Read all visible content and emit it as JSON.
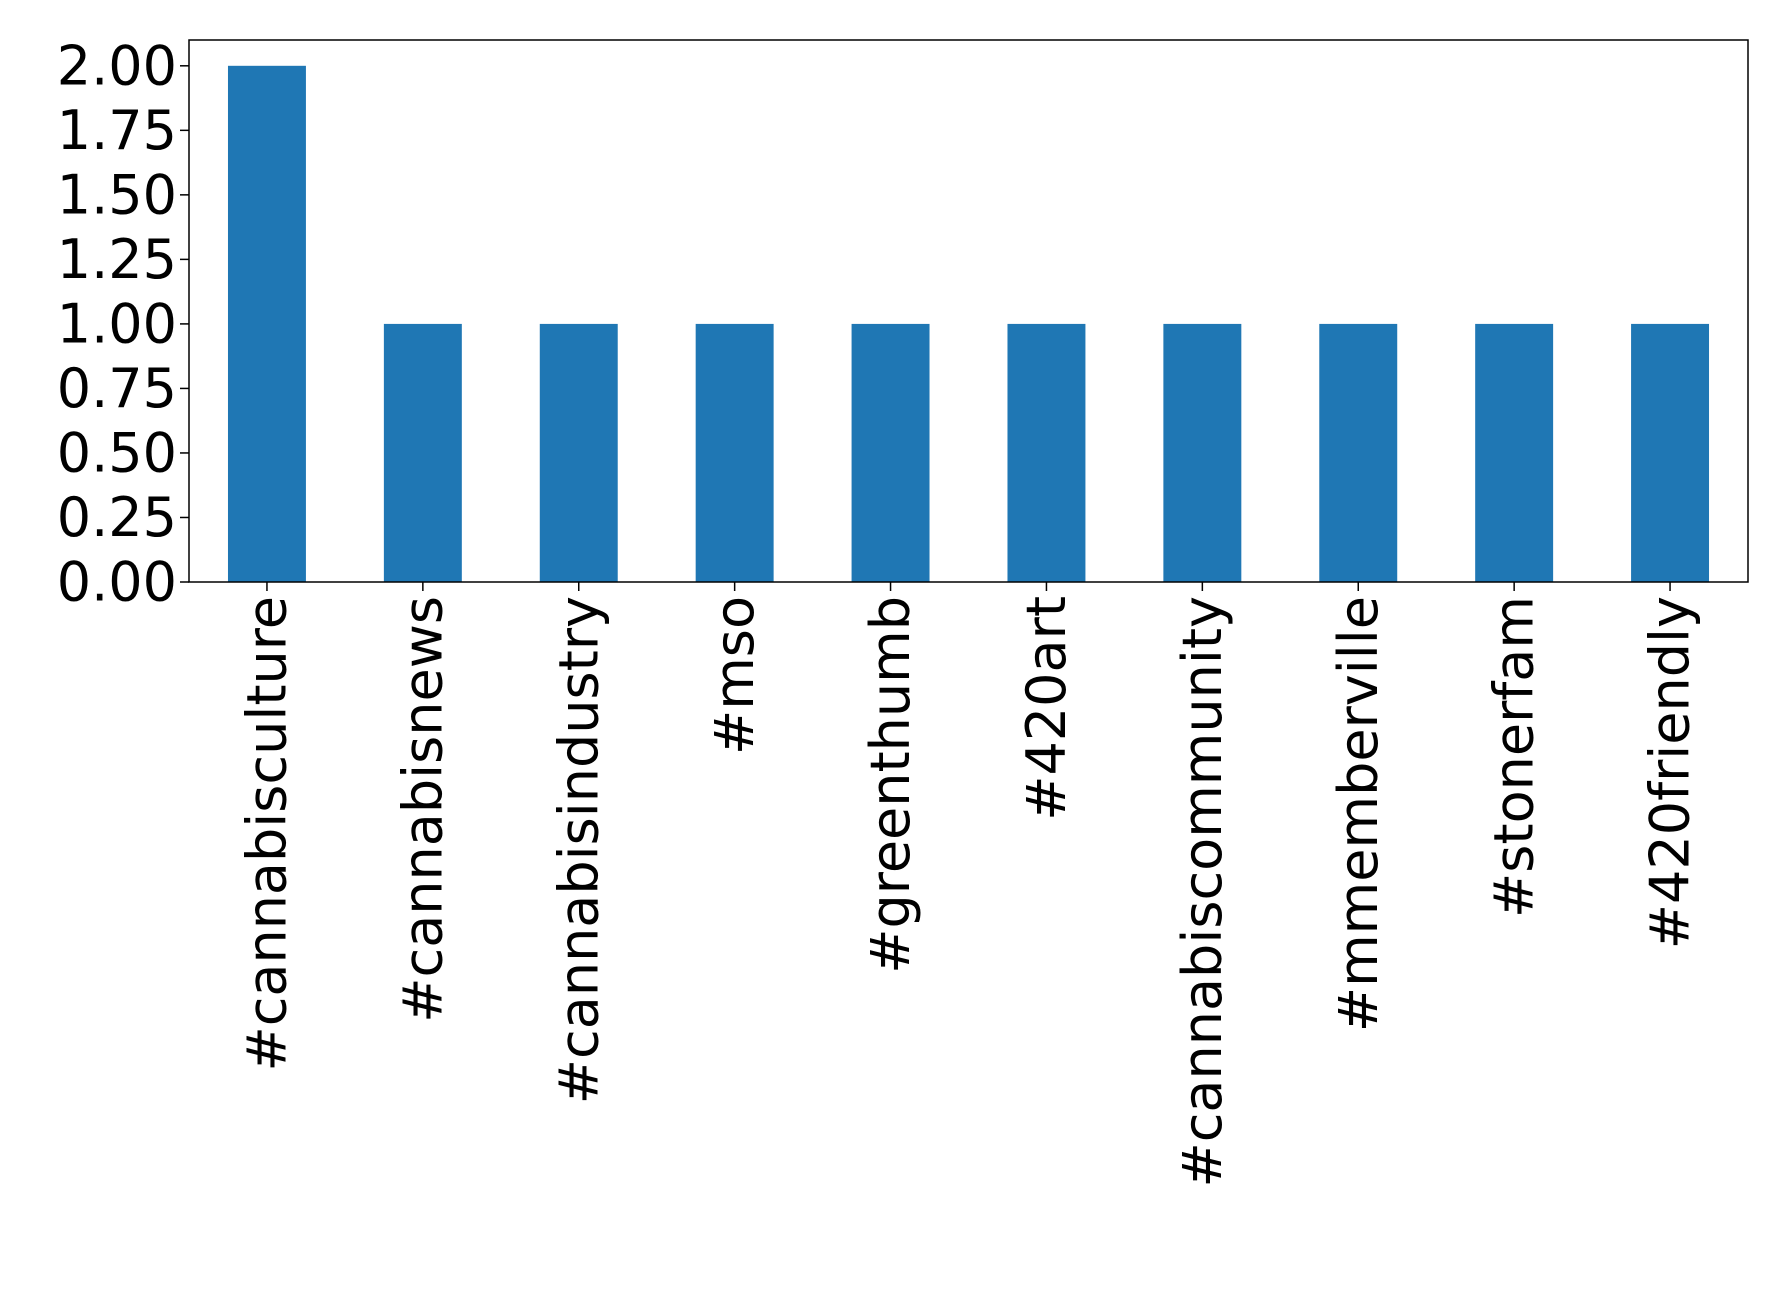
{
  "chart_data": {
    "type": "bar",
    "categories": [
      "#cannabisculture",
      "#cannabisnews",
      "#cannabisindustry",
      "#mso",
      "#greenthumb",
      "#420art",
      "#cannabiscommunity",
      "#mmemberville",
      "#stonerfam",
      "#420friendly"
    ],
    "values": [
      2,
      1,
      1,
      1,
      1,
      1,
      1,
      1,
      1,
      1
    ],
    "yticks": [
      "0.00",
      "0.25",
      "0.50",
      "0.75",
      "1.00",
      "1.25",
      "1.50",
      "1.75",
      "2.00"
    ],
    "ylim": [
      0,
      2.1
    ],
    "title": "",
    "xlabel": "",
    "ylabel": "",
    "bar_color": "#1f77b4",
    "grid": false,
    "legend": "none"
  }
}
